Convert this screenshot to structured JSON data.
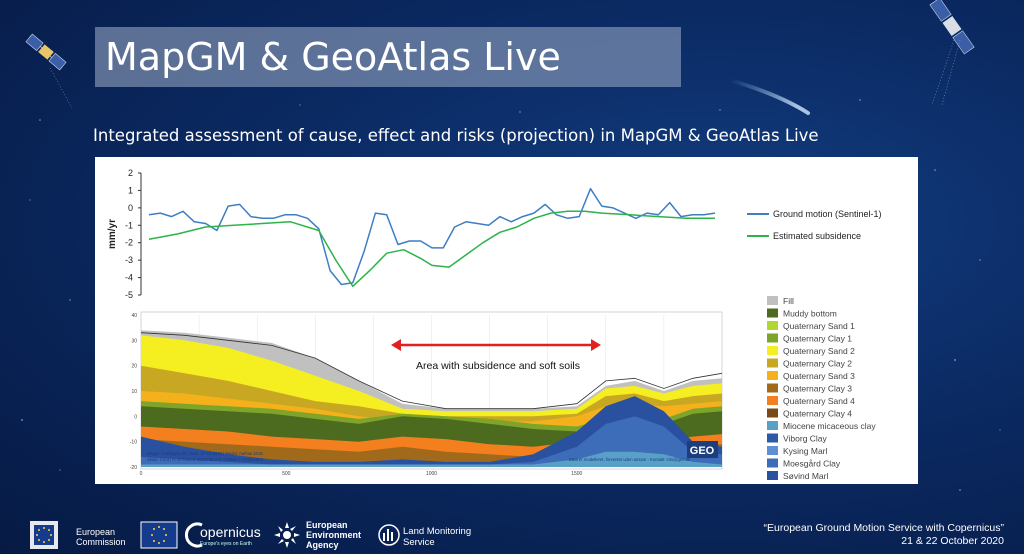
{
  "slide": {
    "title": "MapGM & GeoAtlas Live",
    "subtitle": "Integrated assessment of cause, effect and risks (projection) in MapGM & GeoAtlas Live"
  },
  "footer": {
    "ec_line1": "European",
    "ec_line2": "Commission",
    "copernicus_name": "opernicus",
    "copernicus_tagline": "Europe's eyes on Earth",
    "eea_line1": "European",
    "eea_line2": "Environment",
    "eea_line3": "Agency",
    "lms_line1": "Land Monitoring",
    "lms_line2": "Service",
    "event_title": "“European Ground Motion Service with Copernicus”",
    "event_date": "21 & 22 October 2020"
  },
  "chart_data": [
    {
      "type": "line",
      "ylabel": "mm/yr",
      "ylim": [
        -5,
        2
      ],
      "yticks": [
        2,
        1,
        0,
        -1,
        -2,
        -3,
        -4,
        -5
      ],
      "grid": false,
      "legend_position": "right",
      "series": [
        {
          "name": "Ground motion (Sentinel-1)",
          "color": "#3d7ec4",
          "x": [
            0,
            0.02,
            0.04,
            0.06,
            0.08,
            0.1,
            0.12,
            0.14,
            0.16,
            0.18,
            0.2,
            0.22,
            0.24,
            0.26,
            0.28,
            0.3,
            0.32,
            0.34,
            0.36,
            0.38,
            0.4,
            0.42,
            0.44,
            0.46,
            0.48,
            0.5,
            0.52,
            0.54,
            0.56,
            0.58,
            0.6,
            0.62,
            0.64,
            0.66,
            0.68,
            0.7,
            0.72,
            0.74,
            0.76,
            0.78,
            0.8,
            0.82,
            0.84,
            0.86,
            0.88,
            0.9,
            0.92,
            0.94,
            0.96,
            0.98,
            1.0
          ],
          "values": [
            -0.4,
            -0.3,
            -0.5,
            -0.2,
            -0.8,
            -0.9,
            -1.3,
            0.1,
            0.2,
            -0.5,
            -0.6,
            -0.6,
            -0.4,
            -0.4,
            -0.6,
            -1.2,
            -3.6,
            -4.4,
            -4.3,
            -2.5,
            -0.3,
            -0.4,
            -2.1,
            -1.9,
            -1.9,
            -2.3,
            -2.3,
            -1.1,
            -0.8,
            -0.9,
            -1.0,
            -0.5,
            -0.8,
            -0.5,
            -0.3,
            0.2,
            -0.4,
            -0.6,
            -0.5,
            1.1,
            0.1,
            0.0,
            -0.3,
            -0.6,
            -0.3,
            -0.4,
            0.3,
            -0.5,
            -0.4,
            -0.4,
            -0.3
          ]
        },
        {
          "name": "Estimated subsidence",
          "color": "#2db34a",
          "x": [
            0,
            0.05,
            0.1,
            0.15,
            0.2,
            0.25,
            0.3,
            0.33,
            0.36,
            0.39,
            0.42,
            0.45,
            0.48,
            0.5,
            0.53,
            0.56,
            0.59,
            0.62,
            0.65,
            0.68,
            0.71,
            0.74,
            0.77,
            0.8,
            0.85,
            0.9,
            0.95,
            1.0
          ],
          "values": [
            -1.8,
            -1.5,
            -1.1,
            -1.0,
            -0.9,
            -0.8,
            -1.3,
            -3.0,
            -4.5,
            -3.6,
            -2.6,
            -2.4,
            -2.9,
            -3.3,
            -3.4,
            -2.7,
            -2.0,
            -1.4,
            -1.1,
            -0.6,
            -0.3,
            -0.2,
            -0.2,
            -0.3,
            -0.4,
            -0.5,
            -0.6,
            -0.6
          ]
        }
      ]
    },
    {
      "type": "area",
      "ylim": [
        -20,
        40
      ],
      "yticks": [
        40,
        30,
        20,
        10,
        0,
        -10,
        -20
      ],
      "xticks": [
        0,
        500,
        1000,
        1500
      ],
      "annotation": "Area with subsidence and soft soils",
      "credit_left_line1": "Bruger: rnm@geo.dk | Dato: 07-10-2020 | Model: Aarhus 2019",
      "credit_left_line2": "Skala: 1:8.4 | A: 577540.9, 6222736.4  B: 579663.7, 6222148.9",
      "credit_right": "Data er modelleret, forventet uden ansvar - Kontakt: info@geo.dk",
      "logo_text": "GEO",
      "series": [
        {
          "name": "Fill",
          "color": "#c0c0c0"
        },
        {
          "name": "Muddy bottom",
          "color": "#4d6b1f"
        },
        {
          "name": "Quaternary Sand 1",
          "color": "#b2d630"
        },
        {
          "name": "Quaternary Clay 1",
          "color": "#7ea52a"
        },
        {
          "name": "Quaternary Sand 2",
          "color": "#f5ef22"
        },
        {
          "name": "Quaternary Clay 2",
          "color": "#c8a722"
        },
        {
          "name": "Quaternary Sand 3",
          "color": "#f4b11c"
        },
        {
          "name": "Quaternary Clay 3",
          "color": "#a06a1a"
        },
        {
          "name": "Quaternary Sand 4",
          "color": "#f37f1e"
        },
        {
          "name": "Quaternary Clay 4",
          "color": "#7a4a16"
        },
        {
          "name": "Miocene micaceous clay",
          "color": "#59a0c8"
        },
        {
          "name": "Viborg Clay",
          "color": "#2d5aa6"
        },
        {
          "name": "Kysing Marl",
          "color": "#5f8fd4"
        },
        {
          "name": "Moesgård Clay",
          "color": "#3d6cb8"
        },
        {
          "name": "Søvind Marl",
          "color": "#2a50a0"
        }
      ]
    }
  ]
}
